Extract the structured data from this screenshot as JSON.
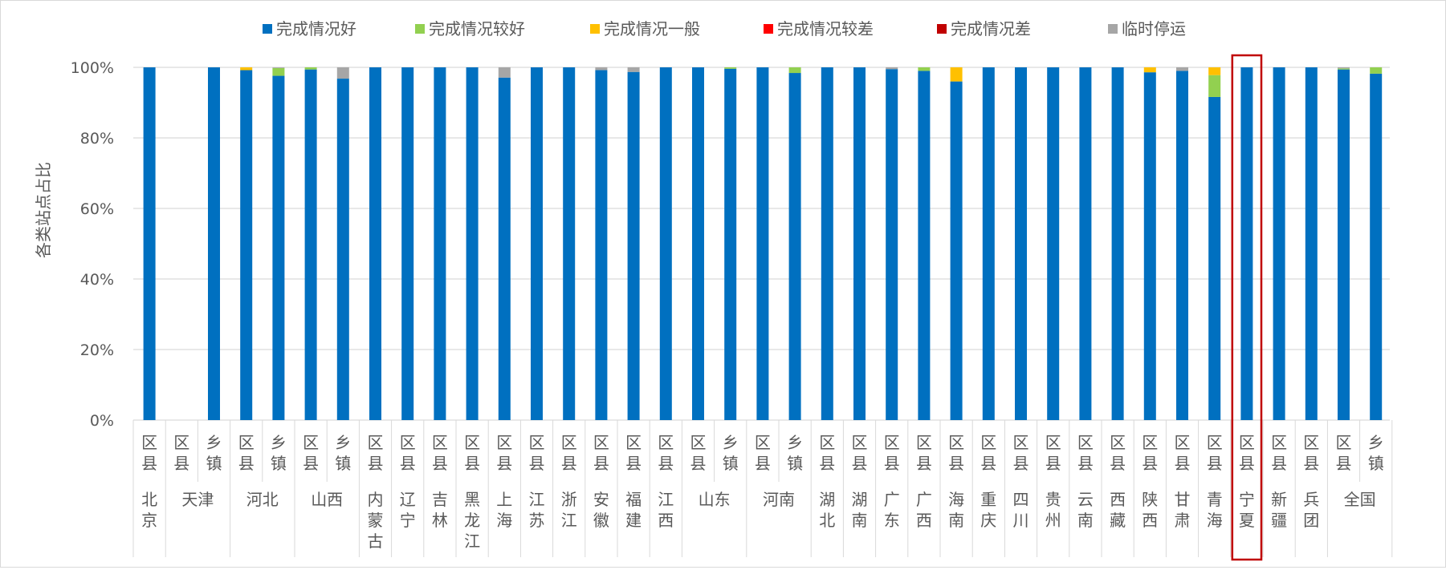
{
  "chart_data": {
    "type": "bar",
    "stacked": true,
    "title": "",
    "ylabel": "各类站点占比",
    "xlabel": "",
    "ylim": [
      0,
      100
    ],
    "y_ticks": [
      "0%",
      "20%",
      "40%",
      "60%",
      "80%",
      "100%"
    ],
    "grid": true,
    "legend_position": "top",
    "highlighted_group": "宁夏",
    "highlight_color": "#c00000",
    "series_names": [
      "完成情况好",
      "完成情况较好",
      "完成情况一般",
      "完成情况较差",
      "完成情况差",
      "临时停运"
    ],
    "series_colors": [
      "#0070c0",
      "#92d050",
      "#ffc000",
      "#ff0000",
      "#c00000",
      "#a6a6a6"
    ],
    "groups": [
      {
        "name": "北京",
        "bars": [
          {
            "label": "区县",
            "values": [
              100,
              0,
              0,
              0,
              0,
              0
            ]
          }
        ]
      },
      {
        "name": "天津",
        "bars": [
          {
            "label": "区县",
            "values": [
              0,
              0,
              0,
              0,
              0,
              0
            ]
          },
          {
            "label": "乡镇",
            "values": [
              100,
              0,
              0,
              0,
              0,
              0
            ]
          }
        ]
      },
      {
        "name": "河北",
        "bars": [
          {
            "label": "区县",
            "values": [
              99.2,
              0,
              0.8,
              0,
              0,
              0
            ]
          },
          {
            "label": "乡镇",
            "values": [
              97.6,
              2.2,
              0,
              0,
              0,
              0.2
            ]
          }
        ]
      },
      {
        "name": "山西",
        "bars": [
          {
            "label": "区县",
            "values": [
              99.4,
              0.6,
              0,
              0,
              0,
              0
            ]
          },
          {
            "label": "乡镇",
            "values": [
              96.8,
              0,
              0,
              0,
              0,
              3.2
            ]
          }
        ]
      },
      {
        "name": "内蒙古",
        "bars": [
          {
            "label": "区县",
            "values": [
              100,
              0,
              0,
              0,
              0,
              0
            ]
          }
        ]
      },
      {
        "name": "辽宁",
        "bars": [
          {
            "label": "区县",
            "values": [
              100,
              0,
              0,
              0,
              0,
              0
            ]
          }
        ]
      },
      {
        "name": "吉林",
        "bars": [
          {
            "label": "区县",
            "values": [
              100,
              0,
              0,
              0,
              0,
              0
            ]
          }
        ]
      },
      {
        "name": "黑龙江",
        "bars": [
          {
            "label": "区县",
            "values": [
              100,
              0,
              0,
              0,
              0,
              0
            ]
          }
        ]
      },
      {
        "name": "上海",
        "bars": [
          {
            "label": "区县",
            "values": [
              97.1,
              0,
              0,
              0,
              0,
              2.9
            ]
          }
        ]
      },
      {
        "name": "江苏",
        "bars": [
          {
            "label": "区县",
            "values": [
              100,
              0,
              0,
              0,
              0,
              0
            ]
          }
        ]
      },
      {
        "name": "浙江",
        "bars": [
          {
            "label": "区县",
            "values": [
              100,
              0,
              0,
              0,
              0,
              0
            ]
          }
        ]
      },
      {
        "name": "安徽",
        "bars": [
          {
            "label": "区县",
            "values": [
              99.2,
              0,
              0,
              0,
              0,
              0.8
            ]
          }
        ]
      },
      {
        "name": "福建",
        "bars": [
          {
            "label": "区县",
            "values": [
              98.7,
              0,
              0,
              0,
              0,
              1.3
            ]
          }
        ]
      },
      {
        "name": "江西",
        "bars": [
          {
            "label": "区县",
            "values": [
              100,
              0,
              0,
              0,
              0,
              0
            ]
          }
        ]
      },
      {
        "name": "山东",
        "bars": [
          {
            "label": "区县",
            "values": [
              100,
              0,
              0,
              0,
              0,
              0
            ]
          },
          {
            "label": "乡镇",
            "values": [
              99.6,
              0.4,
              0,
              0,
              0,
              0
            ]
          }
        ]
      },
      {
        "name": "河南",
        "bars": [
          {
            "label": "区县",
            "values": [
              100,
              0,
              0,
              0,
              0,
              0
            ]
          },
          {
            "label": "乡镇",
            "values": [
              98.4,
              1.6,
              0,
              0,
              0,
              0
            ]
          }
        ]
      },
      {
        "name": "湖北",
        "bars": [
          {
            "label": "区县",
            "values": [
              100,
              0,
              0,
              0,
              0,
              0
            ]
          }
        ]
      },
      {
        "name": "湖南",
        "bars": [
          {
            "label": "区县",
            "values": [
              100,
              0,
              0,
              0,
              0,
              0
            ]
          }
        ]
      },
      {
        "name": "广东",
        "bars": [
          {
            "label": "区县",
            "values": [
              99.5,
              0,
              0,
              0,
              0,
              0.5
            ]
          }
        ]
      },
      {
        "name": "广西",
        "bars": [
          {
            "label": "区县",
            "values": [
              99,
              1,
              0,
              0,
              0,
              0
            ]
          }
        ]
      },
      {
        "name": "海南",
        "bars": [
          {
            "label": "区县",
            "values": [
              96,
              0,
              4,
              0,
              0,
              0
            ]
          }
        ]
      },
      {
        "name": "重庆",
        "bars": [
          {
            "label": "区县",
            "values": [
              100,
              0,
              0,
              0,
              0,
              0
            ]
          }
        ]
      },
      {
        "name": "四川",
        "bars": [
          {
            "label": "区县",
            "values": [
              100,
              0,
              0,
              0,
              0,
              0
            ]
          }
        ]
      },
      {
        "name": "贵州",
        "bars": [
          {
            "label": "区县",
            "values": [
              100,
              0,
              0,
              0,
              0,
              0
            ]
          }
        ]
      },
      {
        "name": "云南",
        "bars": [
          {
            "label": "区县",
            "values": [
              100,
              0,
              0,
              0,
              0,
              0
            ]
          }
        ]
      },
      {
        "name": "西藏",
        "bars": [
          {
            "label": "区县",
            "values": [
              100,
              0,
              0,
              0,
              0,
              0
            ]
          }
        ]
      },
      {
        "name": "陕西",
        "bars": [
          {
            "label": "区县",
            "values": [
              98.6,
              0,
              1.4,
              0,
              0,
              0
            ]
          }
        ]
      },
      {
        "name": "甘肃",
        "bars": [
          {
            "label": "区县",
            "values": [
              99,
              0,
              0,
              0,
              0,
              1
            ]
          }
        ]
      },
      {
        "name": "青海",
        "bars": [
          {
            "label": "区县",
            "values": [
              91.6,
              6.2,
              2.2,
              0,
              0,
              0
            ]
          }
        ]
      },
      {
        "name": "宁夏",
        "bars": [
          {
            "label": "区县",
            "values": [
              100,
              0,
              0,
              0,
              0,
              0
            ]
          }
        ]
      },
      {
        "name": "新疆",
        "bars": [
          {
            "label": "区县",
            "values": [
              100,
              0,
              0,
              0,
              0,
              0
            ]
          }
        ]
      },
      {
        "name": "兵团",
        "bars": [
          {
            "label": "区县",
            "values": [
              100,
              0,
              0,
              0,
              0,
              0
            ]
          }
        ]
      },
      {
        "name": "全国",
        "bars": [
          {
            "label": "区县",
            "values": [
              99.4,
              0.3,
              0,
              0,
              0,
              0.3
            ]
          },
          {
            "label": "乡镇",
            "values": [
              98.2,
              1.8,
              0,
              0,
              0,
              0
            ]
          }
        ]
      }
    ]
  }
}
